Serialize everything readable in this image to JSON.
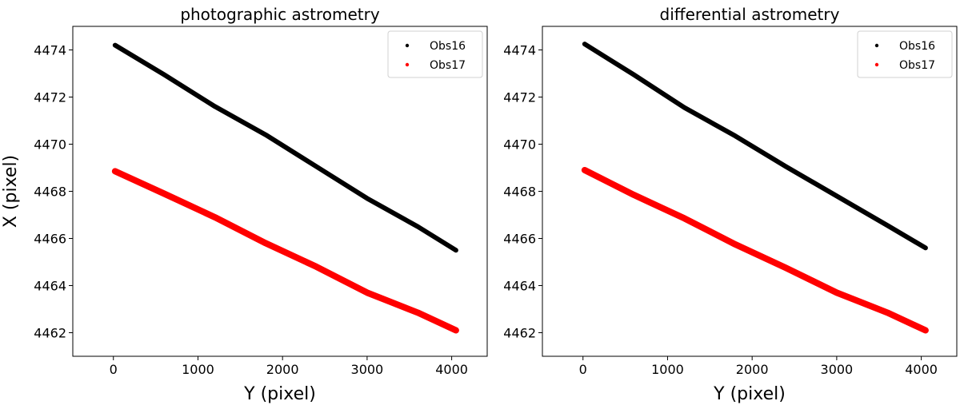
{
  "chart_data": [
    {
      "type": "scatter",
      "title": "photographic astrometry",
      "xlabel": "Y (pixel)",
      "ylabel": "X (pixel)",
      "xlim": [
        -480,
        4420
      ],
      "ylim": [
        4461.0,
        4475.0
      ],
      "xticks": [
        0,
        1000,
        2000,
        3000,
        4000
      ],
      "xtick_labels": [
        "0",
        "1000",
        "2000",
        "3000",
        "4000"
      ],
      "yticks": [
        4462,
        4464,
        4466,
        4468,
        4470,
        4472,
        4474
      ],
      "ytick_labels": [
        "4462",
        "4464",
        "4466",
        "4468",
        "4470",
        "4472",
        "4474"
      ],
      "legend": "top-right",
      "series": [
        {
          "name": "Obs16",
          "color": "#000000",
          "x": [
            20,
            600,
            1200,
            1800,
            2400,
            3000,
            3600,
            4050
          ],
          "y": [
            4474.2,
            4472.95,
            4471.6,
            4470.4,
            4469.05,
            4467.7,
            4466.5,
            4465.5
          ]
        },
        {
          "name": "Obs17",
          "color": "#ff0000",
          "x": [
            20,
            600,
            1200,
            1800,
            2400,
            3000,
            3600,
            4050
          ],
          "y": [
            4468.85,
            4467.9,
            4466.9,
            4465.8,
            4464.8,
            4463.7,
            4462.85,
            4462.1
          ]
        }
      ]
    },
    {
      "type": "scatter",
      "title": "differential astrometry",
      "xlabel": "Y (pixel)",
      "ylabel": "",
      "xlim": [
        -480,
        4420
      ],
      "ylim": [
        4461.0,
        4475.0
      ],
      "xticks": [
        0,
        1000,
        2000,
        3000,
        4000
      ],
      "xtick_labels": [
        "0",
        "1000",
        "2000",
        "3000",
        "4000"
      ],
      "yticks": [
        4462,
        4464,
        4466,
        4468,
        4470,
        4472,
        4474
      ],
      "ytick_labels": [
        "4462",
        "4464",
        "4466",
        "4468",
        "4470",
        "4472",
        "4474"
      ],
      "legend": "top-right",
      "series": [
        {
          "name": "Obs16",
          "color": "#000000",
          "x": [
            20,
            600,
            1200,
            1800,
            2400,
            3000,
            3600,
            4050
          ],
          "y": [
            4474.25,
            4472.95,
            4471.55,
            4470.35,
            4469.05,
            4467.8,
            4466.55,
            4465.6
          ]
        },
        {
          "name": "Obs17",
          "color": "#ff0000",
          "x": [
            20,
            600,
            1200,
            1800,
            2400,
            3000,
            3600,
            4050
          ],
          "y": [
            4468.9,
            4467.85,
            4466.85,
            4465.75,
            4464.75,
            4463.7,
            4462.85,
            4462.1
          ]
        }
      ]
    }
  ]
}
